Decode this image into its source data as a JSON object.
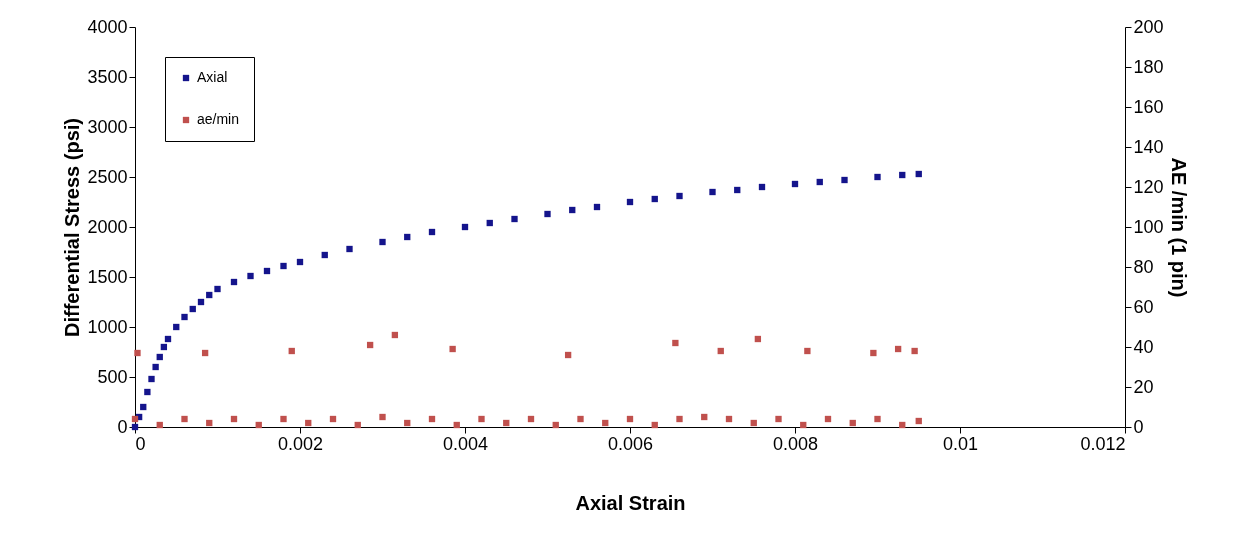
{
  "chart_data": {
    "type": "scatter",
    "xlabel": "Axial Strain",
    "ylabel": "Differential Stress (psi)",
    "y2label": "AE /min (1 pin)",
    "xlim": [
      0,
      0.012
    ],
    "xticks": [
      0,
      0.002,
      0.004,
      0.006,
      0.008,
      0.01,
      0.012
    ],
    "ylim": [
      0,
      4000
    ],
    "yticks": [
      0,
      500,
      1000,
      1500,
      2000,
      2500,
      3000,
      3500,
      4000
    ],
    "y2lim": [
      0,
      200
    ],
    "y2ticks": [
      0,
      20,
      40,
      60,
      80,
      100,
      120,
      140,
      160,
      180,
      200
    ],
    "grid": false,
    "legend": "top left",
    "marker": "square",
    "series": [
      {
        "name": "Axial",
        "color": "#14148c",
        "x": [
          0,
          5e-05,
          0.0001,
          0.00015,
          0.0002,
          0.00025,
          0.0003,
          0.00035,
          0.0004,
          0.0005,
          0.0006,
          0.0007,
          0.0008,
          0.0009,
          0.001,
          0.0012,
          0.0014,
          0.0016,
          0.0018,
          0.002,
          0.0023,
          0.0026,
          0.003,
          0.0033,
          0.0036,
          0.004,
          0.0043,
          0.0046,
          0.005,
          0.0053,
          0.0056,
          0.006,
          0.0063,
          0.0066,
          0.007,
          0.0073,
          0.0076,
          0.008,
          0.0083,
          0.0086,
          0.009,
          0.0093,
          0.0095
        ],
        "values": [
          0,
          100,
          200,
          350,
          480,
          600,
          700,
          800,
          880,
          1000,
          1100,
          1180,
          1250,
          1320,
          1380,
          1450,
          1510,
          1560,
          1610,
          1650,
          1720,
          1780,
          1850,
          1900,
          1950,
          2000,
          2040,
          2080,
          2130,
          2170,
          2200,
          2250,
          2280,
          2310,
          2350,
          2370,
          2400,
          2430,
          2450,
          2470,
          2500,
          2520,
          2530
        ]
      },
      {
        "name": "ae/min",
        "color": "#c0504d",
        "axis": "y2",
        "x": [
          3e-05,
          0.00085,
          0.0019,
          0.00285,
          0.00315,
          0.00385,
          0.00525,
          0.00655,
          0.0071,
          0.00755,
          0.00815,
          0.00895,
          0.00925,
          0.00945,
          0,
          0.0003,
          0.0006,
          0.0009,
          0.0012,
          0.0015,
          0.0018,
          0.0021,
          0.0024,
          0.0027,
          0.003,
          0.0033,
          0.0036,
          0.0039,
          0.0042,
          0.0045,
          0.0048,
          0.0051,
          0.0054,
          0.0057,
          0.006,
          0.0063,
          0.0066,
          0.0069,
          0.0072,
          0.0075,
          0.0078,
          0.0081,
          0.0084,
          0.0087,
          0.009,
          0.0093,
          0.0095
        ],
        "values": [
          37,
          37,
          38,
          41,
          46,
          39,
          36,
          42,
          38,
          44,
          38,
          37,
          39,
          38,
          4,
          1,
          4,
          2,
          4,
          1,
          4,
          2,
          4,
          1,
          5,
          2,
          4,
          1,
          4,
          2,
          4,
          1,
          4,
          2,
          4,
          1,
          4,
          5,
          4,
          2,
          4,
          1,
          4,
          2,
          4,
          1,
          3
        ]
      }
    ]
  }
}
